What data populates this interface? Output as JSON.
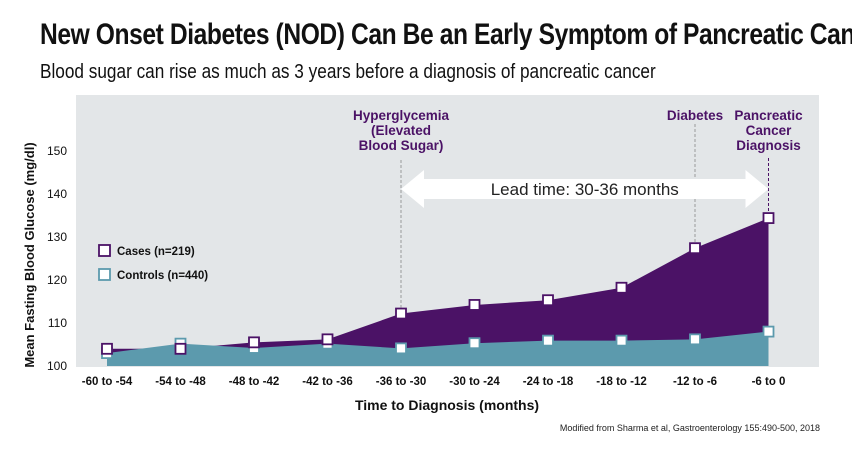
{
  "title": "New Onset Diabetes (NOD) Can Be an Early Symptom of Pancreatic Cancer",
  "subtitle": "Blood sugar can rise as much as 3 years before a diagnosis of pancreatic cancer",
  "source": "Modified from Sharma et al, Gastroenterology 155:490-500, 2018",
  "colors": {
    "cases": "#4b1266",
    "controls": "#5c9aad",
    "plot_bg": "#e3e6e8",
    "annotation": "#4b1266",
    "arrow": "#ffffff"
  },
  "chart_data": {
    "type": "area",
    "xlabel": "Time to Diagnosis (months)",
    "ylabel": "Mean Fasting Blood Glucose (mg/dl)",
    "categories": [
      "-60 to -54",
      "-54 to -48",
      "-48 to -42",
      "-42 to -36",
      "-36 to -30",
      "-30 to -24",
      "-24 to -18",
      "-18 to -12",
      "-12 to -6",
      "-6 to 0"
    ],
    "y_ticks": [
      100,
      110,
      120,
      130,
      140,
      150
    ],
    "ylim": [
      100,
      160
    ],
    "grid": false,
    "legend_position": "left",
    "series": [
      {
        "name": "Cases (n=219)",
        "values": [
          104,
          104,
          105.5,
          106.2,
          112.2,
          114.2,
          115.3,
          118.2,
          127.4,
          134.4
        ]
      },
      {
        "name": "Controls (n=440)",
        "values": [
          103,
          105.2,
          104.2,
          105.2,
          104.1,
          105.3,
          105.9,
          105.9,
          106.2,
          108
        ]
      }
    ],
    "annotations": [
      {
        "id": "hyperglycemia",
        "lines": [
          "Hyperglycemia",
          "(Elevated",
          "Blood Sugar)"
        ],
        "category_index": 4
      },
      {
        "id": "diabetes",
        "lines": [
          "Diabetes"
        ],
        "category_index": 8
      },
      {
        "id": "diagnosis",
        "lines": [
          "Pancreatic",
          "Cancer",
          "Diagnosis"
        ],
        "category_index": 9
      }
    ],
    "lead_time_label": "Lead time: 30-36 months"
  }
}
